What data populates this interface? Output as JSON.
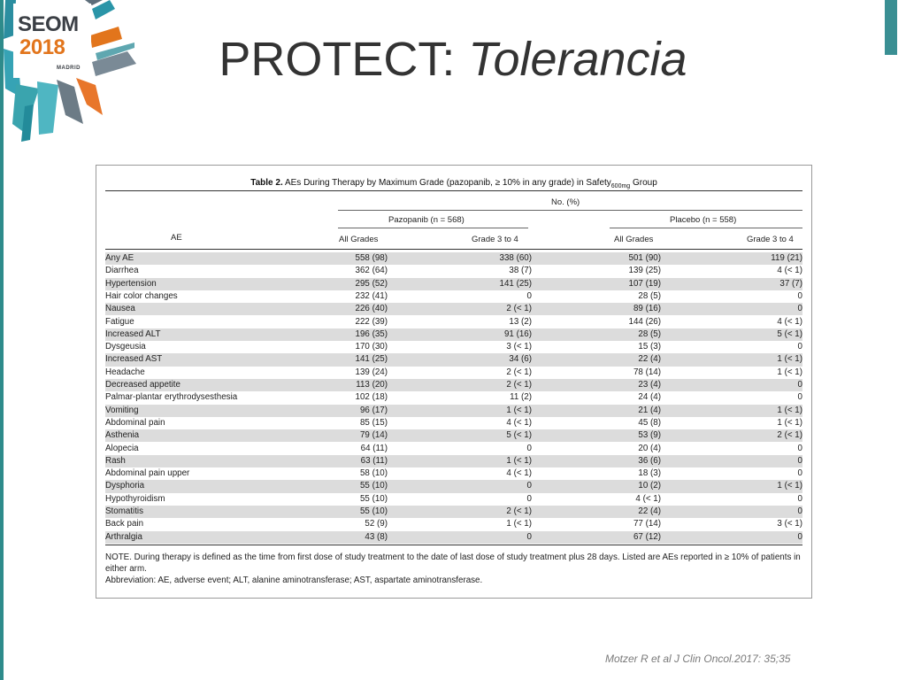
{
  "logo": {
    "name": "SEOM",
    "year": "2018",
    "city": "MADRID"
  },
  "title": {
    "main": "PROTECT: ",
    "emphasis": "Tolerancia"
  },
  "table": {
    "caption_bold": "Table 2.",
    "caption_text": " AEs During Therapy by Maximum Grade (pazopanib, ≥ 10% in any grade) in Safety",
    "caption_sub": "600mg",
    "caption_end": " Group",
    "no_pct": "No. (%)",
    "col_ae": "AE",
    "group1": "Pazopanib (n = 568)",
    "group2": "Placebo (n = 558)",
    "all_grades": "All Grades",
    "grade34": "Grade 3 to 4",
    "rows": [
      [
        "Any AE",
        "558 (98)",
        "338 (60)",
        "501 (90)",
        "119 (21)"
      ],
      [
        "Diarrhea",
        "362 (64)",
        "38 (7)",
        "139 (25)",
        "4 (< 1)"
      ],
      [
        "Hypertension",
        "295 (52)",
        "141 (25)",
        "107 (19)",
        "37 (7)"
      ],
      [
        "Hair color changes",
        "232 (41)",
        "0",
        "28 (5)",
        "0"
      ],
      [
        "Nausea",
        "226 (40)",
        "2 (< 1)",
        "89 (16)",
        "0"
      ],
      [
        "Fatigue",
        "222 (39)",
        "13 (2)",
        "144 (26)",
        "4 (< 1)"
      ],
      [
        "Increased ALT",
        "196 (35)",
        "91 (16)",
        "28 (5)",
        "5 (< 1)"
      ],
      [
        "Dysgeusia",
        "170 (30)",
        "3 (< 1)",
        "15 (3)",
        "0"
      ],
      [
        "Increased AST",
        "141 (25)",
        "34 (6)",
        "22 (4)",
        "1 (< 1)"
      ],
      [
        "Headache",
        "139 (24)",
        "2 (< 1)",
        "78 (14)",
        "1 (< 1)"
      ],
      [
        "Decreased appetite",
        "113 (20)",
        "2 (< 1)",
        "23 (4)",
        "0"
      ],
      [
        "Palmar-plantar erythrodysesthesia",
        "102 (18)",
        "11 (2)",
        "24 (4)",
        "0"
      ],
      [
        "Vomiting",
        "96 (17)",
        "1 (< 1)",
        "21 (4)",
        "1 (< 1)"
      ],
      [
        "Abdominal pain",
        "85 (15)",
        "4 (< 1)",
        "45 (8)",
        "1 (< 1)"
      ],
      [
        "Asthenia",
        "79 (14)",
        "5 (< 1)",
        "53 (9)",
        "2 (< 1)"
      ],
      [
        "Alopecia",
        "64 (11)",
        "0",
        "20 (4)",
        "0"
      ],
      [
        "Rash",
        "63 (11)",
        "1 (< 1)",
        "36 (6)",
        "0"
      ],
      [
        "Abdominal pain upper",
        "58 (10)",
        "4 (< 1)",
        "18 (3)",
        "0"
      ],
      [
        "Dysphoria",
        "55 (10)",
        "0",
        "10 (2)",
        "1 (< 1)"
      ],
      [
        "Hypothyroidism",
        "55 (10)",
        "0",
        "4 (< 1)",
        "0"
      ],
      [
        "Stomatitis",
        "55 (10)",
        "2 (< 1)",
        "22 (4)",
        "0"
      ],
      [
        "Back pain",
        "52 (9)",
        "1 (< 1)",
        "77 (14)",
        "3 (< 1)"
      ],
      [
        "Arthralgia",
        "43 (8)",
        "0",
        "67 (12)",
        "0"
      ]
    ],
    "note": "NOTE. During therapy is defined as the time from first dose of study treatment to the date of last dose of study treatment plus 28 days. Listed are AEs reported in ≥ 10% of patients in either arm.",
    "abbreviation": "Abbreviation: AE, adverse event; ALT, alanine aminotransferase; AST, aspartate aminotransferase."
  },
  "citation": "Motzer R  et al  J Clin Oncol.2017: 35;35",
  "colors": {
    "accent": "#2e8b8b",
    "orange": "#e2751c",
    "shade": "#dcdcdc"
  }
}
